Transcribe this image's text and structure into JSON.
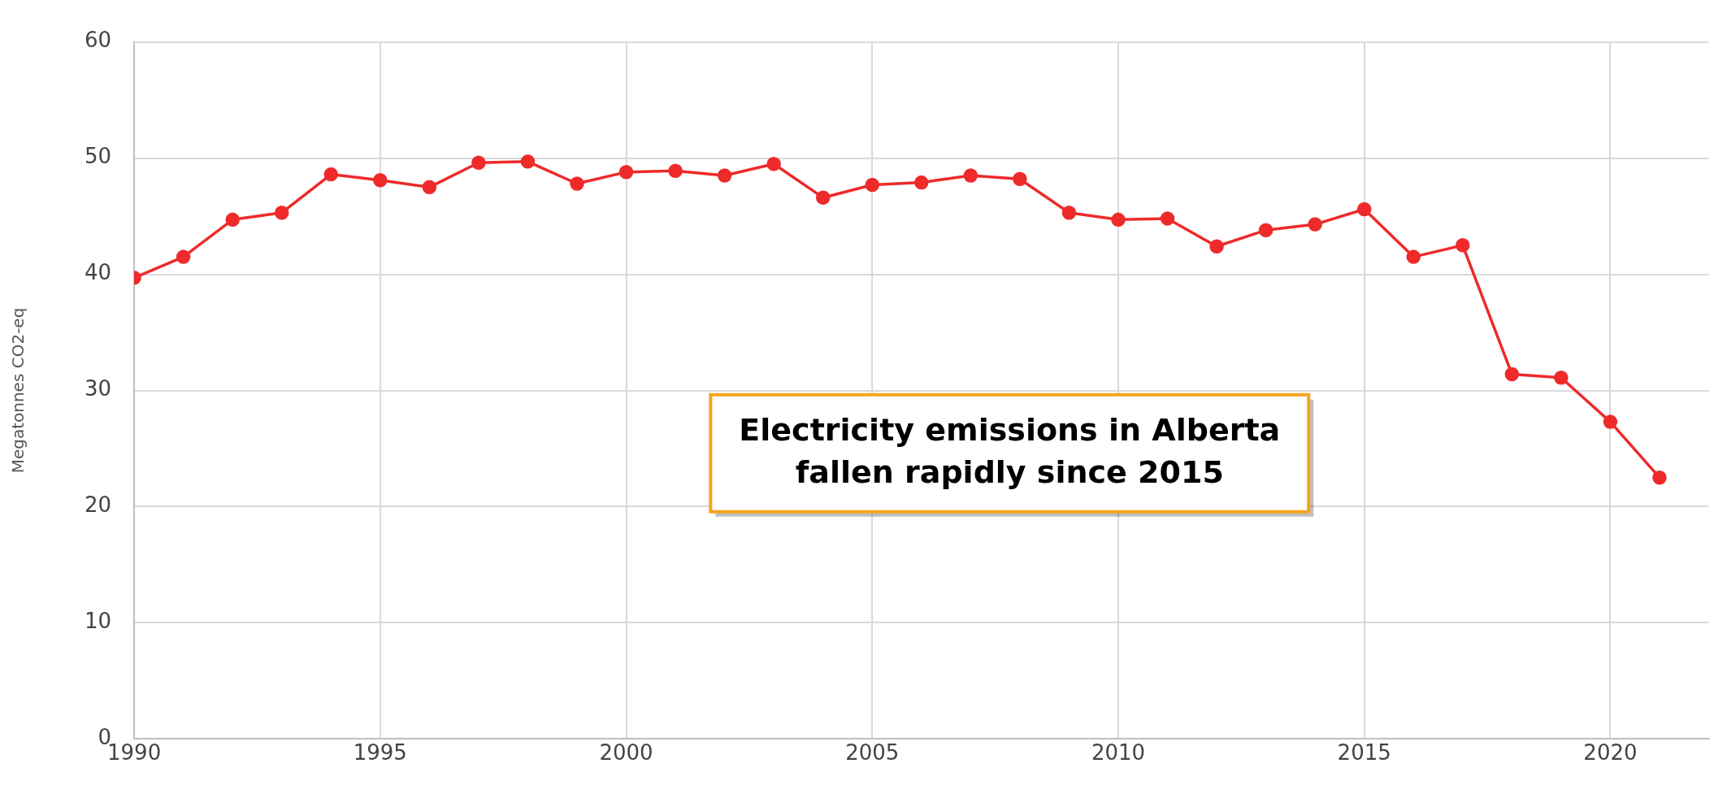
{
  "chart_data": {
    "type": "line",
    "ylabel": "Megatonnes CO2-eq",
    "x": [
      1990,
      1991,
      1992,
      1993,
      1994,
      1995,
      1996,
      1997,
      1998,
      1999,
      2000,
      2001,
      2002,
      2003,
      2004,
      2005,
      2006,
      2007,
      2008,
      2009,
      2010,
      2011,
      2012,
      2013,
      2014,
      2015,
      2016,
      2017,
      2018,
      2019,
      2020,
      2021
    ],
    "series": [
      {
        "color": "#ee2a2a",
        "values": [
          39.7,
          41.5,
          44.7,
          45.3,
          48.6,
          48.1,
          47.5,
          49.6,
          49.7,
          47.8,
          48.8,
          48.9,
          48.5,
          49.5,
          46.6,
          47.7,
          47.9,
          48.5,
          48.2,
          45.3,
          44.7,
          44.8,
          42.4,
          43.8,
          44.3,
          45.6,
          41.5,
          42.5,
          31.4,
          31.1,
          27.3,
          22.5
        ]
      }
    ],
    "xlim": [
      1990,
      2022
    ],
    "xticks": [
      1990,
      1995,
      2000,
      2005,
      2010,
      2015,
      2020
    ],
    "ylim": [
      0,
      60
    ],
    "yticks": [
      0,
      10,
      20,
      30,
      40,
      50,
      60
    ],
    "grid": true,
    "marker": "circle",
    "line_style": "solid",
    "legend": false,
    "annotations": [
      "Electricity emissions in Alberta\nfallen rapidly since 2015"
    ]
  }
}
